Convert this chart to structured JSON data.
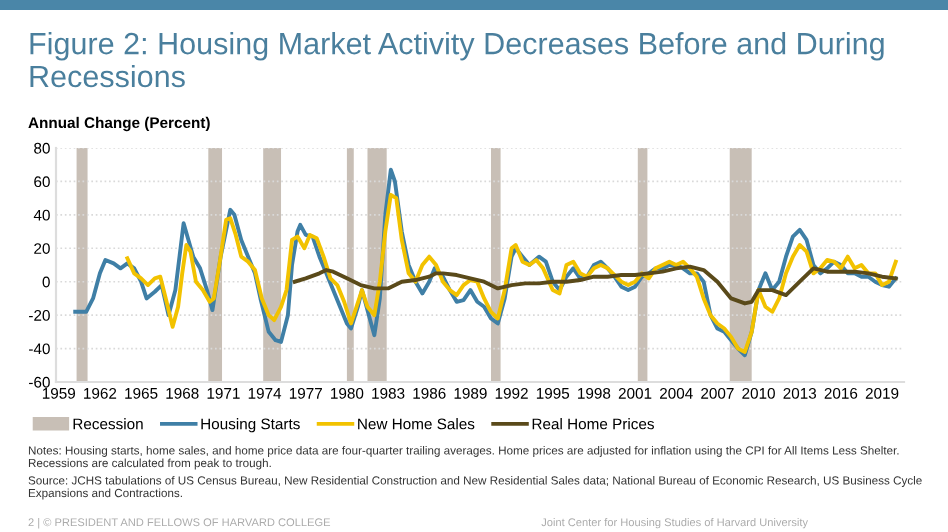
{
  "chart_data": {
    "type": "line",
    "title": "Figure 2: Housing Market Activity Decreases Before and During Recessions",
    "ylabel": "Annual Change (Percent)",
    "xlim": [
      1958.8,
      2020.6
    ],
    "xticks": [
      1959,
      1962,
      1965,
      1968,
      1971,
      1974,
      1977,
      1980,
      1983,
      1986,
      1989,
      1992,
      1995,
      1998,
      2001,
      2004,
      2007,
      2010,
      2013,
      2016,
      2019
    ],
    "ylim": [
      -60,
      80
    ],
    "yticks": [
      -60,
      -40,
      -20,
      0,
      20,
      40,
      60,
      80
    ],
    "grid": "y",
    "legend": "bottom",
    "bands": [
      {
        "axis": "x",
        "from": 1960.3,
        "to": 1961.1,
        "label": "Recession",
        "color": "#c8bfb6"
      },
      {
        "axis": "x",
        "from": 1969.9,
        "to": 1970.9,
        "color": "#c8bfb6"
      },
      {
        "axis": "x",
        "from": 1973.9,
        "to": 1975.2,
        "color": "#c8bfb6"
      },
      {
        "axis": "x",
        "from": 1980.0,
        "to": 1980.5,
        "color": "#c8bfb6"
      },
      {
        "axis": "x",
        "from": 1981.5,
        "to": 1982.9,
        "color": "#c8bfb6"
      },
      {
        "axis": "x",
        "from": 1990.5,
        "to": 1991.2,
        "color": "#c8bfb6"
      },
      {
        "axis": "x",
        "from": 2001.2,
        "to": 2001.9,
        "color": "#c8bfb6"
      },
      {
        "axis": "x",
        "from": 2007.9,
        "to": 2009.5,
        "color": "#c8bfb6"
      }
    ],
    "series": [
      {
        "name": "Housing Starts",
        "color": "#3f7fa6",
        "x": [
          1960.2,
          1961,
          1961.5,
          1962,
          1962.4,
          1963,
          1963.5,
          1964,
          1964.5,
          1965,
          1965.4,
          1966,
          1966.5,
          1967,
          1967.5,
          1968.1,
          1968.8,
          1969.3,
          1969.8,
          1970.2,
          1970.8,
          1971.5,
          1971.8,
          1972.3,
          1972.8,
          1973.3,
          1973.7,
          1974.3,
          1974.8,
          1975.2,
          1975.7,
          1976.0,
          1976.4,
          1976.6,
          1977,
          1977.5,
          1978,
          1978.5,
          1979,
          1979.5,
          1980.0,
          1980.3,
          1980.8,
          1981.1,
          1981.6,
          1982.0,
          1982.4,
          1982.8,
          1983.2,
          1983.5,
          1984,
          1984.5,
          1985,
          1985.5,
          1986,
          1986.4,
          1987,
          1987.5,
          1988,
          1988.5,
          1989,
          1989.5,
          1990,
          1990.5,
          1991,
          1991.5,
          1992,
          1992.3,
          1992.8,
          1993.3,
          1994,
          1994.5,
          1995,
          1995.5,
          1996,
          1996.5,
          1997,
          1997.5,
          1998,
          1998.5,
          1999,
          1999.5,
          2000,
          2000.5,
          2001,
          2001.5,
          2002,
          2002.5,
          2003,
          2003.5,
          2004,
          2004.5,
          2005,
          2005.5,
          2006,
          2006.5,
          2007,
          2007.5,
          2008,
          2008.5,
          2009,
          2009.5,
          2010,
          2010.5,
          2011,
          2011.5,
          2012,
          2012.5,
          2013,
          2013.5,
          2014,
          2014.5,
          2015,
          2015.5,
          2016,
          2016.5,
          2017,
          2017.5,
          2018,
          2018.5,
          2019,
          2019.5,
          2020
        ],
        "values": [
          -18,
          -18,
          -10,
          5,
          13,
          11,
          8,
          11,
          8,
          0,
          -10,
          -6,
          -2,
          -20,
          -5,
          35,
          15,
          8,
          -5,
          -17,
          15,
          43,
          40,
          25,
          15,
          5,
          -10,
          -30,
          -35,
          -36,
          -20,
          10,
          30,
          34,
          28,
          27,
          15,
          5,
          -5,
          -15,
          -25,
          -28,
          -15,
          -5,
          -20,
          -32,
          -10,
          40,
          67,
          60,
          30,
          10,
          0,
          -7,
          0,
          8,
          3,
          -5,
          -12,
          -11,
          -5,
          -12,
          -15,
          -22,
          -25,
          -10,
          15,
          20,
          15,
          10,
          15,
          12,
          0,
          -5,
          3,
          8,
          2,
          3,
          10,
          12,
          8,
          3,
          -3,
          -5,
          -3,
          3,
          5,
          8,
          8,
          10,
          10,
          8,
          5,
          5,
          0,
          -20,
          -28,
          -30,
          -35,
          -40,
          -44,
          -30,
          -5,
          5,
          -5,
          0,
          15,
          27,
          31,
          25,
          10,
          5,
          8,
          12,
          10,
          5,
          5,
          3,
          3,
          0,
          -2,
          -3,
          2
        ]
      },
      {
        "name": "New Home Sales",
        "color": "#f2c200",
        "x": [
          1964.0,
          1964.5,
          1965,
          1965.5,
          1966,
          1966.4,
          1966.8,
          1967.3,
          1967.7,
          1968,
          1968.3,
          1968.6,
          1969,
          1969.5,
          1970,
          1970.3,
          1970.7,
          1971.2,
          1971.5,
          1971.9,
          1972.3,
          1972.8,
          1973.3,
          1973.8,
          1974.3,
          1974.7,
          1975.2,
          1975.6,
          1976,
          1976.4,
          1976.9,
          1977.3,
          1977.8,
          1978.3,
          1978.8,
          1979.3,
          1979.8,
          1980.3,
          1980.7,
          1981.1,
          1981.5,
          1982,
          1982.4,
          1982.8,
          1983.2,
          1983.6,
          1984,
          1984.5,
          1985,
          1985.5,
          1986,
          1986.5,
          1987,
          1987.5,
          1988,
          1988.5,
          1989,
          1989.5,
          1990,
          1990.5,
          1991,
          1991.5,
          1992,
          1992.3,
          1992.8,
          1993.3,
          1993.8,
          1994.3,
          1995,
          1995.5,
          1996,
          1996.5,
          1997,
          1997.5,
          1998,
          1998.5,
          1999,
          2000,
          2000.5,
          2001,
          2001.5,
          2002,
          2002.5,
          2003,
          2003.5,
          2004,
          2004.5,
          2005,
          2005.5,
          2006,
          2006.5,
          2007,
          2007.5,
          2008,
          2008.5,
          2009,
          2009.5,
          2010,
          2010.5,
          2011,
          2011.5,
          2012,
          2012.5,
          2013,
          2013.5,
          2014,
          2014.5,
          2015,
          2015.5,
          2016,
          2016.5,
          2017,
          2017.5,
          2018,
          2018.5,
          2019,
          2019.5,
          2020
        ],
        "values": [
          14,
          5,
          2,
          -2,
          2,
          3,
          -10,
          -27,
          -15,
          5,
          22,
          18,
          0,
          -5,
          -12,
          -10,
          10,
          37,
          38,
          28,
          15,
          12,
          7,
          -10,
          -20,
          -23,
          -15,
          -5,
          25,
          27,
          20,
          28,
          26,
          15,
          2,
          -2,
          -12,
          -25,
          -15,
          -5,
          -15,
          -20,
          0,
          30,
          52,
          50,
          25,
          5,
          0,
          10,
          15,
          10,
          0,
          -5,
          -8,
          -2,
          1,
          0,
          -10,
          -18,
          -22,
          -5,
          20,
          22,
          12,
          10,
          13,
          8,
          -5,
          -7,
          10,
          12,
          5,
          3,
          8,
          10,
          8,
          0,
          -2,
          0,
          5,
          2,
          8,
          10,
          12,
          10,
          12,
          8,
          3,
          -10,
          -20,
          -25,
          -28,
          -33,
          -40,
          -42,
          -30,
          -5,
          -15,
          -18,
          -10,
          5,
          15,
          22,
          18,
          5,
          8,
          13,
          12,
          8,
          15,
          8,
          10,
          5,
          5,
          -2,
          0,
          12
        ]
      },
      {
        "name": "Real Home Prices",
        "color": "#5a4a1a",
        "x": [
          1976.2,
          1977,
          1978,
          1978.5,
          1979,
          1980,
          1981,
          1982,
          1983,
          1984,
          1985,
          1986,
          1986.5,
          1987,
          1988,
          1989,
          1990,
          1991,
          1992,
          1993,
          1994,
          1995,
          1996,
          1997,
          1998,
          1999,
          2000,
          2001,
          2002,
          2003,
          2004,
          2005,
          2006,
          2007,
          2008,
          2009,
          2009.5,
          2010,
          2011,
          2012,
          2013,
          2014,
          2015,
          2016,
          2017,
          2018,
          2019,
          2020
        ],
        "values": [
          0,
          2,
          5,
          7,
          6,
          2,
          -2,
          -4,
          -4,
          0,
          1,
          3,
          5,
          5,
          4,
          2,
          0,
          -4,
          -2,
          -1,
          -1,
          0,
          0,
          1,
          3,
          3,
          4,
          4,
          5,
          6,
          8,
          9,
          7,
          0,
          -10,
          -13,
          -12,
          -5,
          -5,
          -8,
          0,
          8,
          6,
          6,
          6,
          5,
          3,
          2
        ]
      }
    ],
    "annotations": [
      "Notes: Housing starts, home sales, and home price data are four-quarter trailing averages. Home prices are adjusted for inflation using the CPI for All Items Less Shelter. Recessions are calculated from peak to trough.",
      "Source: JCHS tabulations of US Census Bureau, New Residential Construction and New Residential Sales data; National Bureau of Economic Research, US Business Cycle Expansions and Contractions.",
      "2 | © PRESIDENT AND FELLOWS OF HARVARD COLLEGE",
      "Joint Center for Housing Studies of Harvard University"
    ]
  }
}
